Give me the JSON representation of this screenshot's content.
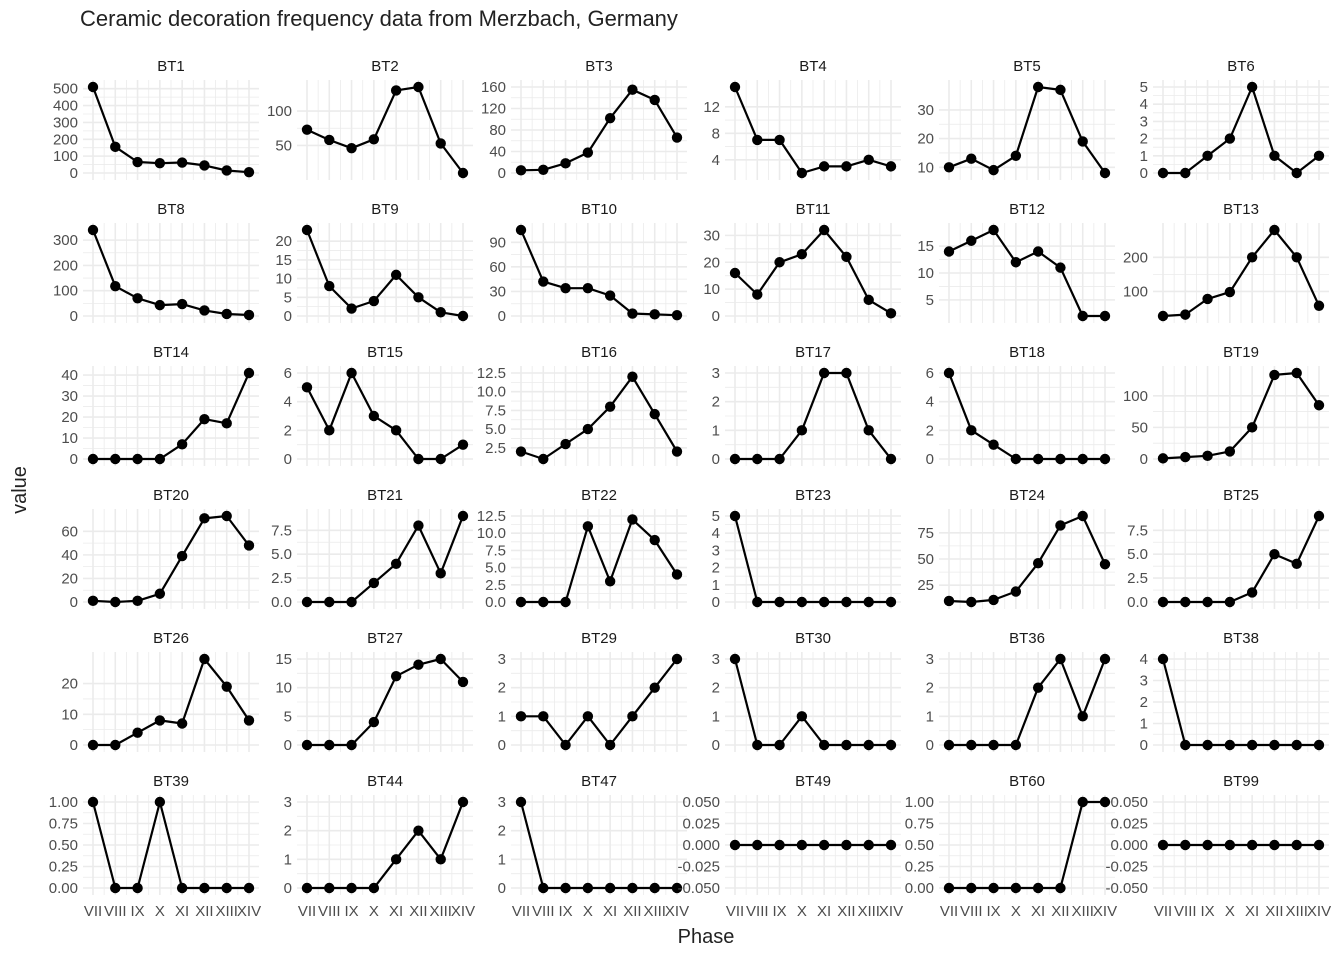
{
  "chart_data": {
    "type": "line",
    "title": "Ceramic decoration frequency data from Merzbach, Germany",
    "xlabel": "Phase",
    "ylabel": "value",
    "categories": [
      "VII",
      "VIII",
      "IX",
      "X",
      "XI",
      "XII",
      "XIII",
      "XIV"
    ],
    "series": [
      {
        "name": "BT1",
        "values": [
          510,
          155,
          65,
          58,
          62,
          45,
          15,
          5
        ],
        "yticks": [
          0,
          100,
          200,
          300,
          400,
          500
        ],
        "ylim": [
          0,
          510
        ]
      },
      {
        "name": "BT2",
        "values": [
          73,
          58,
          46,
          59,
          130,
          135,
          53,
          10
        ],
        "yticks": [
          50,
          100
        ],
        "ylim": [
          10,
          135
        ]
      },
      {
        "name": "BT3",
        "values": [
          5,
          6,
          18,
          38,
          102,
          155,
          136,
          66
        ],
        "yticks": [
          0,
          40,
          80,
          120,
          160
        ],
        "ylim": [
          0,
          160
        ]
      },
      {
        "name": "BT4",
        "values": [
          15,
          7,
          7,
          2,
          3,
          3,
          4,
          3
        ],
        "yticks": [
          4,
          8,
          12
        ],
        "ylim": [
          2,
          15
        ]
      },
      {
        "name": "BT5",
        "values": [
          10,
          13,
          9,
          14,
          38,
          37,
          19,
          8
        ],
        "yticks": [
          10,
          20,
          30
        ],
        "ylim": [
          8,
          38
        ]
      },
      {
        "name": "BT6",
        "values": [
          0,
          0,
          1,
          2,
          5,
          1,
          0,
          1
        ],
        "yticks": [
          0,
          1,
          2,
          3,
          4,
          5
        ],
        "ylim": [
          0,
          5
        ]
      },
      {
        "name": "BT8",
        "values": [
          340,
          118,
          70,
          43,
          47,
          22,
          8,
          4
        ],
        "yticks": [
          0,
          100,
          200,
          300
        ],
        "ylim": [
          0,
          340
        ]
      },
      {
        "name": "BT9",
        "values": [
          23,
          8,
          2,
          4,
          11,
          5,
          1,
          0
        ],
        "yticks": [
          0,
          5,
          10,
          15,
          20
        ],
        "ylim": [
          0,
          23
        ]
      },
      {
        "name": "BT10",
        "values": [
          105,
          42,
          34,
          34,
          25,
          3,
          2,
          1
        ],
        "yticks": [
          0,
          30,
          60,
          90
        ],
        "ylim": [
          0,
          105
        ]
      },
      {
        "name": "BT11",
        "values": [
          16,
          8,
          20,
          23,
          32,
          22,
          6,
          1
        ],
        "yticks": [
          0,
          10,
          20,
          30
        ],
        "ylim": [
          0,
          32
        ]
      },
      {
        "name": "BT12",
        "values": [
          14,
          16,
          18,
          12,
          14,
          11,
          2,
          2
        ],
        "yticks": [
          5,
          10,
          15
        ],
        "ylim": [
          2,
          18
        ]
      },
      {
        "name": "BT13",
        "values": [
          28,
          32,
          78,
          98,
          200,
          280,
          200,
          58
        ],
        "yticks": [
          100,
          200
        ],
        "ylim": [
          28,
          280
        ]
      },
      {
        "name": "BT14",
        "values": [
          0,
          0,
          0,
          0,
          7,
          19,
          17,
          41
        ],
        "yticks": [
          0,
          10,
          20,
          30,
          40
        ],
        "ylim": [
          0,
          41
        ]
      },
      {
        "name": "BT15",
        "values": [
          5,
          2,
          6,
          3,
          2,
          0,
          0,
          1
        ],
        "yticks": [
          0,
          2,
          4,
          6
        ],
        "ylim": [
          0,
          6
        ]
      },
      {
        "name": "BT16",
        "values": [
          2,
          1,
          3,
          5,
          8,
          12,
          7,
          2
        ],
        "yticks": [
          2.5,
          5,
          7.5,
          10,
          12.5
        ],
        "yticklabels": [
          "2.5",
          "5.0",
          "7.5",
          "10.0",
          "12.5"
        ],
        "ylim": [
          1,
          12.5
        ]
      },
      {
        "name": "BT17",
        "values": [
          0,
          0,
          0,
          1,
          3,
          3,
          1,
          0
        ],
        "yticks": [
          0,
          1,
          2,
          3
        ],
        "ylim": [
          0,
          3
        ]
      },
      {
        "name": "BT18",
        "values": [
          6,
          2,
          1,
          0,
          0,
          0,
          0,
          0
        ],
        "yticks": [
          0,
          2,
          4,
          6
        ],
        "ylim": [
          0,
          6
        ]
      },
      {
        "name": "BT19",
        "values": [
          1,
          3,
          5,
          12,
          50,
          133,
          136,
          85
        ],
        "yticks": [
          0,
          50,
          100
        ],
        "ylim": [
          0,
          136
        ]
      },
      {
        "name": "BT20",
        "values": [
          1,
          0,
          1,
          7,
          39,
          71,
          73,
          48
        ],
        "yticks": [
          0,
          20,
          40,
          60
        ],
        "ylim": [
          0,
          73
        ]
      },
      {
        "name": "BT21",
        "values": [
          0,
          0,
          0,
          2,
          4,
          8,
          3,
          9
        ],
        "yticks": [
          0,
          2.5,
          5,
          7.5
        ],
        "yticklabels": [
          "0.0",
          "2.5",
          "5.0",
          "7.5"
        ],
        "ylim": [
          0,
          9
        ]
      },
      {
        "name": "BT22",
        "values": [
          0,
          0,
          0,
          11,
          3,
          12,
          9,
          4
        ],
        "yticks": [
          0,
          2.5,
          5,
          7.5,
          10,
          12.5
        ],
        "yticklabels": [
          "0.0",
          "2.5",
          "5.0",
          "7.5",
          "10.0",
          "12.5"
        ],
        "ylim": [
          0,
          12.5
        ]
      },
      {
        "name": "BT23",
        "values": [
          5,
          0,
          0,
          0,
          0,
          0,
          0,
          0
        ],
        "yticks": [
          0,
          1,
          2,
          3,
          4,
          5
        ],
        "ylim": [
          0,
          5
        ]
      },
      {
        "name": "BT24",
        "values": [
          10,
          9,
          11,
          19,
          46,
          82,
          91,
          45
        ],
        "yticks": [
          25,
          50,
          75
        ],
        "ylim": [
          9,
          91
        ]
      },
      {
        "name": "BT25",
        "values": [
          0,
          0,
          0,
          0,
          1,
          5,
          4,
          9
        ],
        "yticks": [
          0,
          2.5,
          5,
          7.5
        ],
        "yticklabels": [
          "0.0",
          "2.5",
          "5.0",
          "7.5"
        ],
        "ylim": [
          0,
          9
        ]
      },
      {
        "name": "BT26",
        "values": [
          0,
          0,
          4,
          8,
          7,
          28,
          19,
          8
        ],
        "yticks": [
          0,
          10,
          20
        ],
        "ylim": [
          0,
          28
        ]
      },
      {
        "name": "BT27",
        "values": [
          0,
          0,
          0,
          4,
          12,
          14,
          15,
          11
        ],
        "yticks": [
          0,
          5,
          10,
          15
        ],
        "ylim": [
          0,
          15
        ]
      },
      {
        "name": "BT29",
        "values": [
          1,
          1,
          0,
          1,
          0,
          1,
          2,
          3
        ],
        "yticks": [
          0,
          1,
          2,
          3
        ],
        "ylim": [
          0,
          3
        ]
      },
      {
        "name": "BT30",
        "values": [
          3,
          0,
          0,
          1,
          0,
          0,
          0,
          0
        ],
        "yticks": [
          0,
          1,
          2,
          3
        ],
        "ylim": [
          0,
          3
        ]
      },
      {
        "name": "BT36",
        "values": [
          0,
          0,
          0,
          0,
          2,
          3,
          1,
          3
        ],
        "yticks": [
          0,
          1,
          2,
          3
        ],
        "ylim": [
          0,
          3
        ]
      },
      {
        "name": "BT38",
        "values": [
          4,
          0,
          0,
          0,
          0,
          0,
          0,
          0
        ],
        "yticks": [
          0,
          1,
          2,
          3,
          4
        ],
        "ylim": [
          0,
          4
        ]
      },
      {
        "name": "BT39",
        "values": [
          1,
          0,
          0,
          1,
          0,
          0,
          0,
          0
        ],
        "yticks": [
          0,
          0.25,
          0.5,
          0.75,
          1
        ],
        "yticklabels": [
          "0.00",
          "0.25",
          "0.50",
          "0.75",
          "1.00"
        ],
        "ylim": [
          0,
          1
        ]
      },
      {
        "name": "BT44",
        "values": [
          0,
          0,
          0,
          0,
          1,
          2,
          1,
          3
        ],
        "yticks": [
          0,
          1,
          2,
          3
        ],
        "ylim": [
          0,
          3
        ]
      },
      {
        "name": "BT47",
        "values": [
          3,
          0,
          0,
          0,
          0,
          0,
          0,
          0
        ],
        "yticks": [
          0,
          1,
          2,
          3
        ],
        "ylim": [
          0,
          3
        ]
      },
      {
        "name": "BT49",
        "values": [
          0,
          0,
          0,
          0,
          0,
          0,
          0,
          0
        ],
        "yticks": [
          -0.05,
          -0.025,
          0,
          0.025,
          0.05
        ],
        "yticklabels": [
          "-0.050",
          "-0.025",
          "0.000",
          "0.025",
          "0.050"
        ],
        "ylim": [
          -0.05,
          0.05
        ]
      },
      {
        "name": "BT60",
        "values": [
          0,
          0,
          0,
          0,
          0,
          0,
          1,
          1
        ],
        "yticks": [
          0,
          0.25,
          0.5,
          0.75,
          1
        ],
        "yticklabels": [
          "0.00",
          "0.25",
          "0.50",
          "0.75",
          "1.00"
        ],
        "ylim": [
          0,
          1
        ]
      },
      {
        "name": "BT99",
        "values": [
          0,
          0,
          0,
          0,
          0,
          0,
          0,
          0
        ],
        "yticks": [
          -0.05,
          -0.025,
          0,
          0.025,
          0.05
        ],
        "yticklabels": [
          "-0.050",
          "-0.025",
          "0.000",
          "0.025",
          "0.050"
        ],
        "ylim": [
          -0.05,
          0.05
        ]
      }
    ],
    "layout": "facet-grid 6 columns x 6 rows",
    "grid": true,
    "line_color": "#000000",
    "grid_color": "#ebebeb",
    "text_color": "#4d4d4d"
  }
}
